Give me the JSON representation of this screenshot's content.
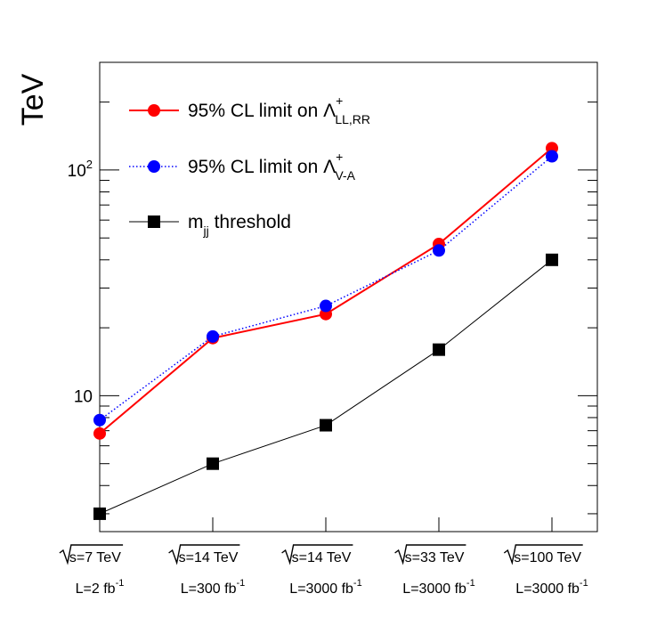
{
  "chart_data": {
    "type": "line",
    "ylabel": "TeV",
    "yscale": "log",
    "ylim": [
      2.5,
      300
    ],
    "yticks": [
      {
        "value": 10,
        "label": "10"
      },
      {
        "value": 100,
        "label": "10",
        "sup": "2"
      }
    ],
    "categories": [
      {
        "energy": "s=7 TeV",
        "lumi": "L=2 fb",
        "lumi_sup": "-1"
      },
      {
        "energy": "s=14 TeV",
        "lumi": "L=300 fb",
        "lumi_sup": "-1"
      },
      {
        "energy": "s=14 TeV",
        "lumi": "L=3000 fb",
        "lumi_sup": "-1"
      },
      {
        "energy": "s=33 TeV",
        "lumi": "L=3000 fb",
        "lumi_sup": "-1"
      },
      {
        "energy": "s=100 TeV",
        "lumi": "L=3000 fb",
        "lumi_sup": "-1"
      }
    ],
    "series": [
      {
        "key": "llrr",
        "legend_main": "95% CL limit on Λ",
        "legend_sup": "+",
        "legend_sub": "LL,RR",
        "color": "#ff0000",
        "marker": "circle",
        "linestyle": "solid",
        "values": [
          6.8,
          18,
          23,
          47,
          125
        ]
      },
      {
        "key": "va",
        "legend_main": "95% CL limit on Λ",
        "legend_sup": "+",
        "legend_sub": "V-A",
        "color": "#0000ff",
        "marker": "circle",
        "linestyle": "dotted",
        "values": [
          7.8,
          18.3,
          25,
          44,
          115
        ]
      },
      {
        "key": "mjj",
        "legend_main": "m",
        "legend_sup": "",
        "legend_sub": "jj",
        "legend_after": " threshold",
        "color": "#000000",
        "marker": "square",
        "linestyle": "solid",
        "values": [
          3,
          5,
          7.4,
          16,
          40
        ]
      }
    ]
  }
}
